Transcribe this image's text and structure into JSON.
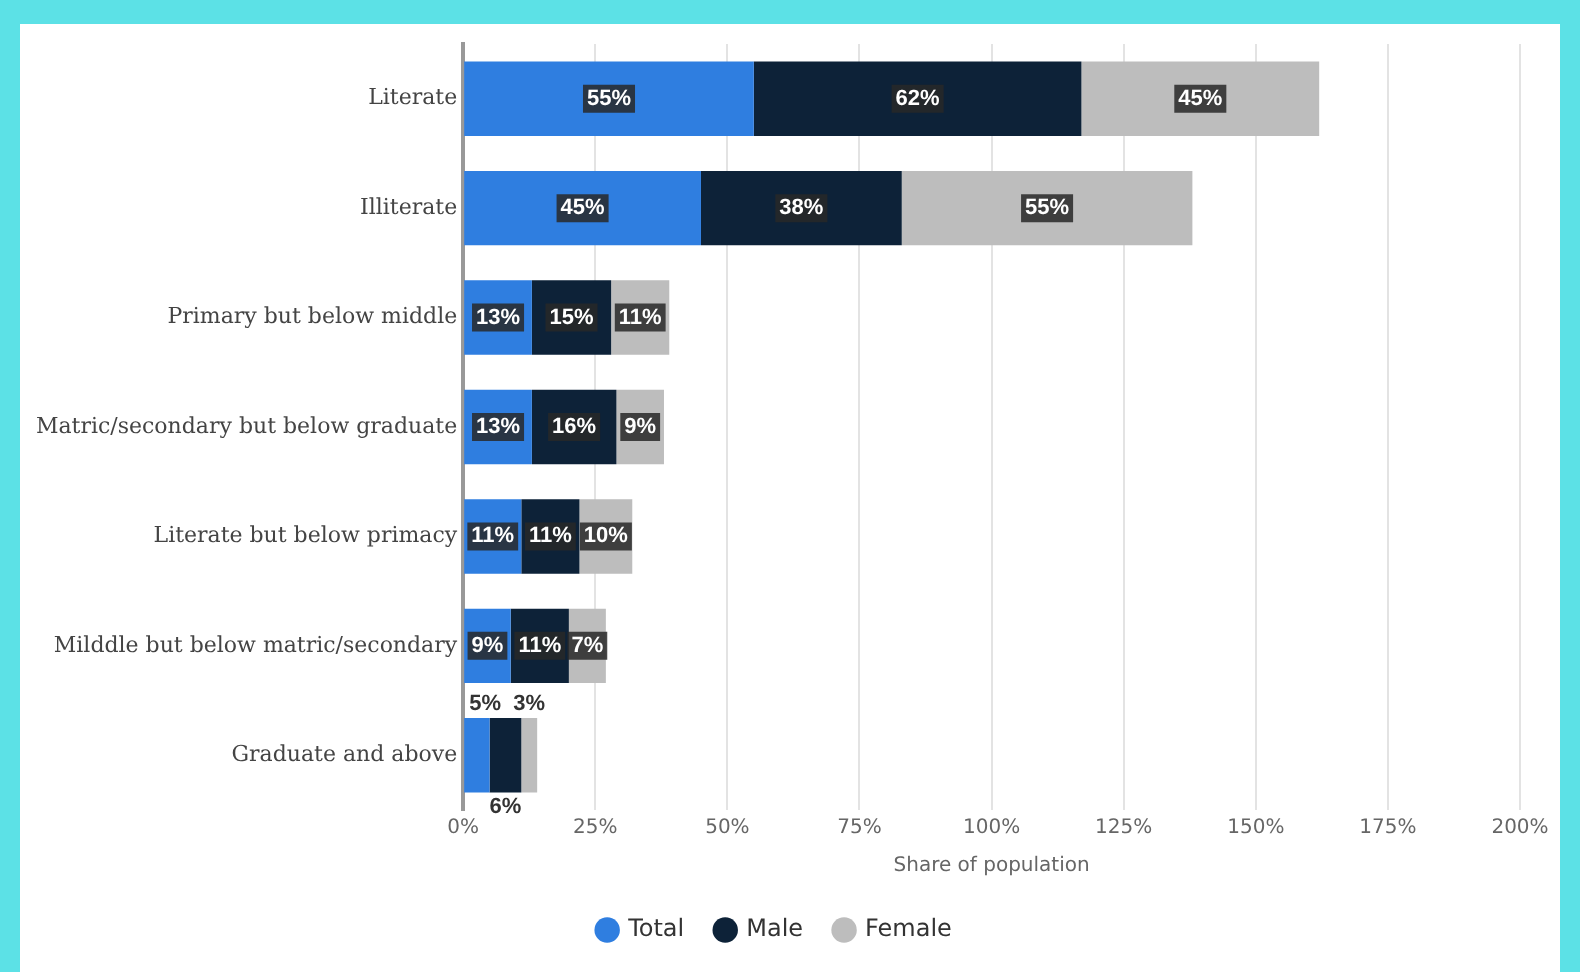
{
  "chart_data": {
    "type": "bar",
    "orientation": "horizontal",
    "stacked": true,
    "xlabel": "Share of population",
    "categories": [
      "Literate",
      "Illiterate",
      "Primary but below middle",
      "Matric/secondary but below graduate",
      "Literate but below primacy",
      "Milddle but below matric/secondary",
      "Graduate and above"
    ],
    "series": [
      {
        "name": "Total",
        "color": "#2f7ee0",
        "values": [
          55,
          45,
          13,
          13,
          11,
          9,
          5
        ],
        "value_labels": [
          "55%",
          "45%",
          "13%",
          "13%",
          "11%",
          "9%",
          "5%"
        ]
      },
      {
        "name": "Male",
        "color": "#0d2238",
        "values": [
          62,
          38,
          15,
          16,
          11,
          11,
          6
        ],
        "value_labels": [
          "62%",
          "38%",
          "15%",
          "16%",
          "11%",
          "11%",
          "6%"
        ]
      },
      {
        "name": "Female",
        "color": "#bdbdbd",
        "values": [
          45,
          55,
          11,
          9,
          10,
          7,
          3
        ],
        "value_labels": [
          "45%",
          "55%",
          "11%",
          "9%",
          "10%",
          "7%",
          "3%"
        ]
      }
    ],
    "xlim": [
      0,
      200
    ],
    "xticks": [
      {
        "value": 0,
        "label": "0%"
      },
      {
        "value": 25,
        "label": "25%"
      },
      {
        "value": 50,
        "label": "50%"
      },
      {
        "value": 75,
        "label": "75%"
      },
      {
        "value": 100,
        "label": "100%"
      },
      {
        "value": 125,
        "label": "125%"
      },
      {
        "value": 150,
        "label": "150%"
      },
      {
        "value": 175,
        "label": "175%"
      },
      {
        "value": 200,
        "label": "200%"
      }
    ],
    "grid": "x",
    "legend": "bottom"
  }
}
